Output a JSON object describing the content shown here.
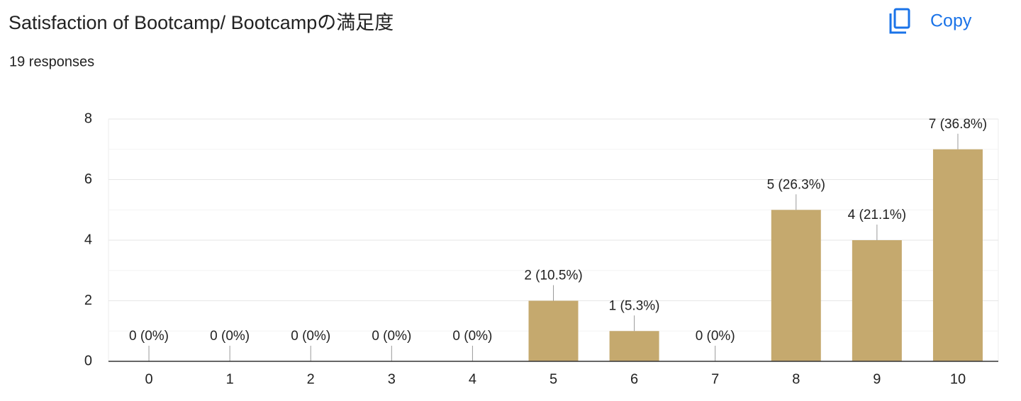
{
  "toolbar": {
    "copy": "Copy"
  },
  "chart_data": {
    "type": "bar",
    "title": "Satisfaction of Bootcamp/ Bootcampの満足度",
    "subtitle": "19 responses",
    "categories": [
      "0",
      "1",
      "2",
      "3",
      "4",
      "5",
      "6",
      "7",
      "8",
      "9",
      "10"
    ],
    "values": [
      0,
      0,
      0,
      0,
      0,
      2,
      1,
      0,
      5,
      4,
      7
    ],
    "value_labels": [
      "0 (0%)",
      "0 (0%)",
      "0 (0%)",
      "0 (0%)",
      "0 (0%)",
      "2 (10.5%)",
      "1 (5.3%)",
      "0 (0%)",
      "5 (26.3%)",
      "4 (21.1%)",
      "7 (36.8%)"
    ],
    "color": "#c5a96e",
    "ylim": [
      0,
      8
    ],
    "yticks": [
      0,
      2,
      4,
      6,
      8
    ],
    "yminor": [
      1,
      3,
      5,
      7
    ],
    "grid": true
  }
}
